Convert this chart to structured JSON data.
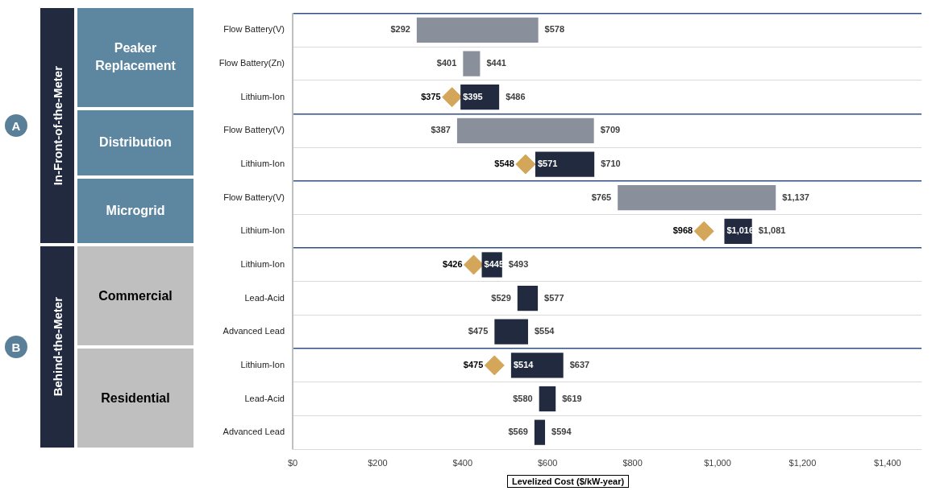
{
  "chart_data": {
    "type": "bar",
    "orientation": "horizontal",
    "xlabel": "Levelized Cost ($/kW-year)",
    "categories": [
      "Flow Battery(V)",
      "Flow Battery(Zn)",
      "Lithium-Ion",
      "Flow Battery(V)",
      "Lithium-Ion",
      "Flow Battery(V)",
      "Lithium-Ion",
      "Lithium-Ion",
      "Lead-Acid",
      "Advanced Lead",
      "Lithium-Ion",
      "Lead-Acid",
      "Advanced Lead"
    ],
    "series": [
      {
        "base": [
          292,
          401,
          395,
          387,
          571,
          765,
          1016,
          445,
          529,
          475,
          514,
          580,
          569
        ],
        "values": [
          286,
          40,
          91,
          322,
          139,
          372,
          65,
          48,
          48,
          79,
          123,
          39,
          25
        ],
        "colors": [
          "#8a8f9c",
          "#8a8f9c",
          "#222a40",
          "#8a8f9c",
          "#222a40",
          "#8a8f9c",
          "#222a40",
          "#222a40",
          "#222a40",
          "#222a40",
          "#222a40",
          "#222a40",
          "#222a40"
        ],
        "value_labels": [
          [
            "$292",
            "$578"
          ],
          [
            "$401",
            "$441"
          ],
          [
            "$395",
            "$486"
          ],
          [
            "$387",
            "$709"
          ],
          [
            "$571",
            "$710"
          ],
          [
            "$765",
            "$1,137"
          ],
          [
            "$1,016",
            "$1,081"
          ],
          [
            "$445",
            "$493"
          ],
          [
            "$529",
            "$577"
          ],
          [
            "$475",
            "$554"
          ],
          [
            "$514",
            "$637"
          ],
          [
            "$580",
            "$619"
          ],
          [
            "$569",
            "$594"
          ]
        ]
      },
      {
        "type": "scatter",
        "color": "#d4a65a",
        "values": [
          null,
          null,
          375,
          null,
          548,
          null,
          968,
          426,
          null,
          null,
          475,
          null,
          null
        ],
        "value_labels": [
          null,
          null,
          "$375",
          null,
          "$548",
          null,
          "$968",
          "$426",
          null,
          null,
          "$475",
          null,
          null
        ]
      }
    ],
    "marker": "diamond",
    "xlim": [
      0,
      1480
    ],
    "xticks": [
      {
        "value": 0,
        "label": "$0"
      },
      {
        "value": 200,
        "label": "$200"
      },
      {
        "value": 400,
        "label": "$400"
      },
      {
        "value": 600,
        "label": "$600"
      },
      {
        "value": 800,
        "label": "$800"
      },
      {
        "value": 1000,
        "label": "$1,000"
      },
      {
        "value": 1200,
        "label": "$1,200"
      },
      {
        "value": 1400,
        "label": "$1,400"
      }
    ],
    "grid": "y",
    "annotations": [
      "In-Front-of-the-Meter",
      "Behind-the-Meter",
      "A",
      "B",
      "Peaker Replacement",
      "Distribution",
      "Microgrid",
      "Commercial",
      "Residential"
    ]
  }
}
